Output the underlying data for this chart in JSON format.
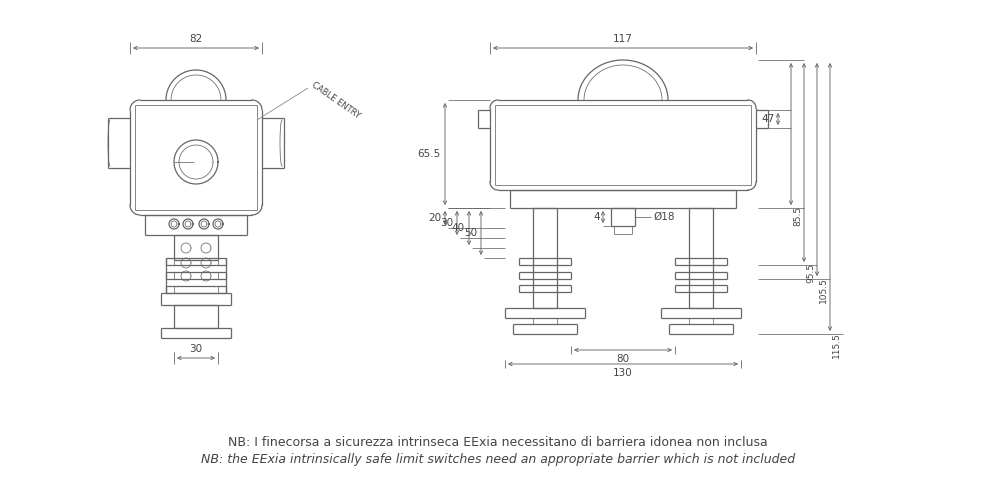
{
  "bg_color": "#ffffff",
  "lc": "#666666",
  "lc_thin": "#888888",
  "tc": "#444444",
  "note1": "NB: I finecorsa a sicurezza intrinseca EExia necessitano di barriera idonea non inclusa",
  "note2": "NB: the EExia intrinsically safe limit switches need an appropriate barrier which is not included",
  "cable_entry": "CABLE ENTRY",
  "d82": "82",
  "d117": "117",
  "d30b": "30",
  "d65_5": "65.5",
  "d50": "50",
  "d40": "40",
  "d30": "30",
  "d20": "20",
  "d47": "47",
  "d85_5": "85.5",
  "d95_5": "95.5",
  "d105_5": "105.5",
  "d115_5": "115.5",
  "d18": "Ø18",
  "d4": "4",
  "d80": "80",
  "d130": "130"
}
